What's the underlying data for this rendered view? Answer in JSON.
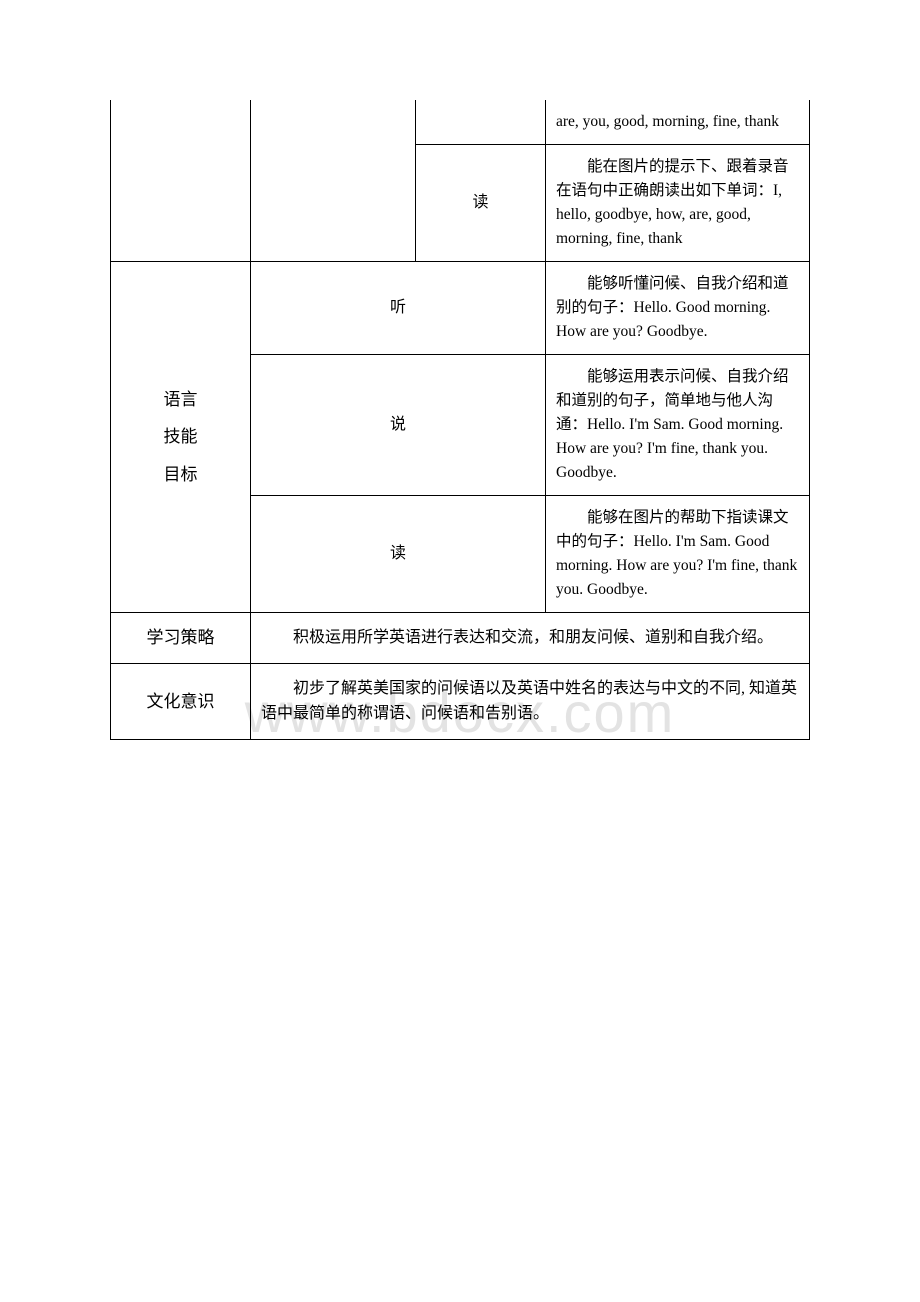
{
  "watermark": "www.bdocx.com",
  "rows": {
    "r1c4": "are, you, good, morning, fine, thank",
    "r2c3": "读",
    "r2c4_indent": "能在图片的",
    "r2c4_rest": "提示下、跟着录音在语句中正确朗读出如下单词：I, hello, goodbye, how, are, good, morning, fine, thank",
    "r3c1_line1": "语言",
    "r3c1_line2": "技能",
    "r3c1_line3": "目标",
    "r3c2": "听",
    "r3c4_indent": "能够听懂问",
    "r3c4_rest": "候、自我介绍和道别的句子：Hello. Good morning. How are you? Goodbye.",
    "r4c2": "说",
    "r4c4_indent": "能够运用表",
    "r4c4_rest": "示问候、自我介绍和道别的句子，简单地与他人沟通：Hello. I'm Sam. Good morning. How are you? I'm fine, thank you. Goodbye.",
    "r5c2": "读",
    "r5c4_indent": "能够在图片",
    "r5c4_rest": "的帮助下指读课文中的句子：Hello. I'm Sam. Good morning. How are you? I'm fine, thank you. Goodbye.",
    "r6c1": "学习策略",
    "r6c2_indent": "积极运用所学英语进行表达和交流，和朋友问候",
    "r6c2_rest": "、道别和自我介绍。",
    "r7c1": "文化意识",
    "r7c2_indent": "初步了解英美国家的问候语以及英语中姓名的表",
    "r7c2_rest": "达与中文的不同, 知道英语中最简单的称谓语、问候语和告别语。"
  }
}
